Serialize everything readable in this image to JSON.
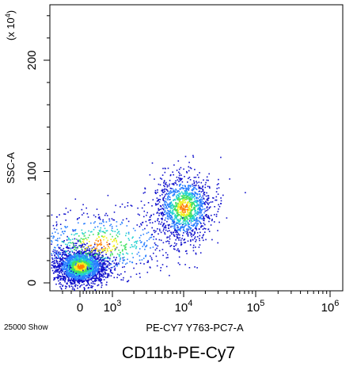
{
  "chart_data": {
    "type": "scatter",
    "title": "CD11b-PE-Cy7",
    "xlabel": "PE-CY7 Y763-PC7-A",
    "ylabel": "SSC-A",
    "y_scale_label": "(x 10",
    "y_scale_exponent": "4",
    "y_scale_close": ")",
    "event_count_text": "25000 Show",
    "x_scale": "biexponential",
    "x_ticks": [
      {
        "value": 0,
        "base": "0",
        "exp": ""
      },
      {
        "value": 1000,
        "base": "10",
        "exp": "3"
      },
      {
        "value": 10000,
        "base": "10",
        "exp": "4"
      },
      {
        "value": 100000,
        "base": "10",
        "exp": "5"
      },
      {
        "value": 1000000,
        "base": "10",
        "exp": "6"
      }
    ],
    "y_ticks": [
      0,
      100,
      200
    ],
    "ylim": [
      0,
      250
    ],
    "grid": false,
    "density_colors": [
      "#1010cc",
      "#2a7fff",
      "#20d0d0",
      "#40e060",
      "#f0f020",
      "#ff8000"
    ],
    "populations": [
      {
        "center_x": 0,
        "center_y": 15,
        "spread_x": 0.18,
        "spread_y": 8,
        "events": 2200
      },
      {
        "center_x": 10000,
        "center_y": 68,
        "spread_x": 0.2,
        "spread_y": 15,
        "events": 1300
      },
      {
        "center_x": 600,
        "center_y": 35,
        "spread_x": 0.55,
        "spread_y": 15,
        "events": 700
      }
    ]
  }
}
